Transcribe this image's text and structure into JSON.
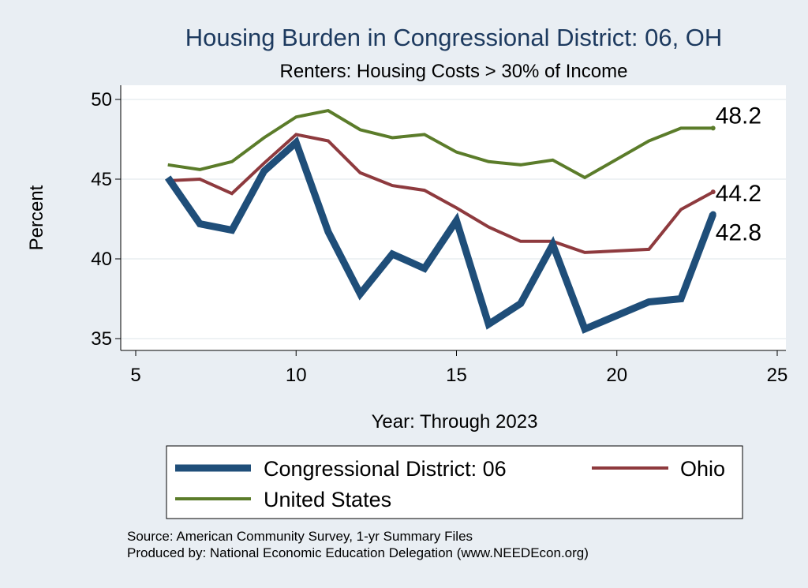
{
  "chart_data": {
    "type": "line",
    "title": "Housing Burden in Congressional District:  06, OH",
    "subtitle": "Renters: Housing Costs > 30% of Income",
    "xlabel": "Year: Through 2023",
    "ylabel": "Percent",
    "xlim": [
      5,
      25
    ],
    "ylim": [
      35,
      50
    ],
    "xticks": [
      5,
      10,
      15,
      20,
      25
    ],
    "yticks": [
      35,
      40,
      45,
      50
    ],
    "grid": true,
    "legend_position": "bottom",
    "series": [
      {
        "name": "Congressional District:  06",
        "color": "#1f4e79",
        "x": [
          6,
          7,
          8,
          9,
          10,
          11,
          12,
          13,
          14,
          15,
          16,
          17,
          18,
          19,
          21,
          22,
          23
        ],
        "y": [
          45.1,
          42.2,
          41.8,
          45.5,
          47.3,
          41.7,
          37.8,
          40.3,
          39.4,
          42.4,
          35.9,
          37.2,
          40.9,
          35.6,
          37.3,
          37.5,
          42.8
        ],
        "end_label": "42.8"
      },
      {
        "name": "Ohio",
        "color": "#8e3a3e",
        "x": [
          6,
          7,
          8,
          9,
          10,
          11,
          12,
          13,
          14,
          15,
          16,
          17,
          18,
          19,
          21,
          22,
          23
        ],
        "y": [
          44.9,
          45.0,
          44.1,
          46.0,
          47.8,
          47.4,
          45.4,
          44.6,
          44.3,
          43.2,
          42.0,
          41.1,
          41.1,
          40.4,
          40.6,
          43.1,
          44.2
        ],
        "end_label": "44.2"
      },
      {
        "name": "United States",
        "color": "#5b7c2a",
        "x": [
          6,
          7,
          8,
          9,
          10,
          11,
          12,
          13,
          14,
          15,
          16,
          17,
          18,
          19,
          21,
          22,
          23
        ],
        "y": [
          45.9,
          45.6,
          46.1,
          47.6,
          48.9,
          49.3,
          48.1,
          47.6,
          47.8,
          46.7,
          46.1,
          45.9,
          46.2,
          45.1,
          47.4,
          48.2,
          48.2
        ],
        "end_label": "48.2"
      }
    ],
    "notes": [
      "Source: American Community Survey, 1-yr Summary Files",
      "Produced by: National Economic Education Delegation (www.NEEDEcon.org)"
    ]
  }
}
